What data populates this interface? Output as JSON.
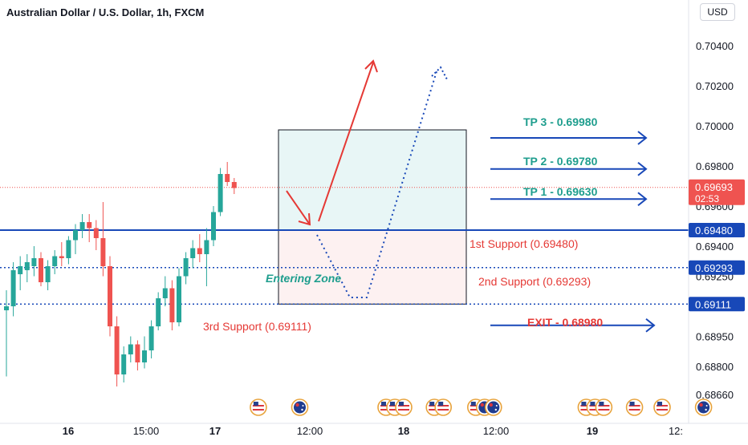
{
  "header": {
    "title": "Australian Dollar / U.S. Dollar, 1h, FXCM",
    "currency": "USD"
  },
  "colors": {
    "up": "#26a69a",
    "down": "#ef5350",
    "blue": "#1848b8",
    "red_text": "#e53935",
    "teal_text": "#1f9e8e",
    "price_line": "#ef5350"
  },
  "chart_data": {
    "type": "candlestick",
    "title": "Australian Dollar / U.S. Dollar, 1h, FXCM",
    "ylim": [
      0.6858,
      0.7058
    ],
    "y_ticks": [
      "0.70400",
      "0.70200",
      "0.70000",
      "0.69800",
      "0.69600",
      "0.69400",
      "0.69250",
      "0.68950",
      "0.68800",
      "0.68660"
    ],
    "x_ticks": [
      "16",
      "15:00",
      "17",
      "12:00",
      "18",
      "12:00",
      "19",
      "12:"
    ],
    "candles": [
      {
        "o": 0.6908,
        "h": 0.6918,
        "l": 0.6875,
        "c": 0.691
      },
      {
        "o": 0.691,
        "h": 0.6932,
        "l": 0.6905,
        "c": 0.6928
      },
      {
        "o": 0.6926,
        "h": 0.6935,
        "l": 0.6918,
        "c": 0.693
      },
      {
        "o": 0.6928,
        "h": 0.6936,
        "l": 0.6922,
        "c": 0.6932
      },
      {
        "o": 0.693,
        "h": 0.694,
        "l": 0.6925,
        "c": 0.6934
      },
      {
        "o": 0.6934,
        "h": 0.6937,
        "l": 0.692,
        "c": 0.6922
      },
      {
        "o": 0.6922,
        "h": 0.6933,
        "l": 0.6918,
        "c": 0.693
      },
      {
        "o": 0.693,
        "h": 0.6938,
        "l": 0.6926,
        "c": 0.6935
      },
      {
        "o": 0.6935,
        "h": 0.6942,
        "l": 0.693,
        "c": 0.6934
      },
      {
        "o": 0.6934,
        "h": 0.6945,
        "l": 0.6931,
        "c": 0.6943
      },
      {
        "o": 0.6943,
        "h": 0.6951,
        "l": 0.6936,
        "c": 0.6948
      },
      {
        "o": 0.6948,
        "h": 0.6956,
        "l": 0.6944,
        "c": 0.6952
      },
      {
        "o": 0.6952,
        "h": 0.6956,
        "l": 0.6942,
        "c": 0.6949
      },
      {
        "o": 0.6949,
        "h": 0.6953,
        "l": 0.6938,
        "c": 0.6944
      },
      {
        "o": 0.6944,
        "h": 0.6962,
        "l": 0.6925,
        "c": 0.693
      },
      {
        "o": 0.693,
        "h": 0.6935,
        "l": 0.6895,
        "c": 0.69
      },
      {
        "o": 0.69,
        "h": 0.6905,
        "l": 0.687,
        "c": 0.6876
      },
      {
        "o": 0.6876,
        "h": 0.689,
        "l": 0.6872,
        "c": 0.6886
      },
      {
        "o": 0.6886,
        "h": 0.6895,
        "l": 0.6882,
        "c": 0.6891
      },
      {
        "o": 0.6891,
        "h": 0.6893,
        "l": 0.6878,
        "c": 0.6882
      },
      {
        "o": 0.6882,
        "h": 0.6895,
        "l": 0.6879,
        "c": 0.6888
      },
      {
        "o": 0.6888,
        "h": 0.6903,
        "l": 0.6884,
        "c": 0.69
      },
      {
        "o": 0.69,
        "h": 0.6917,
        "l": 0.6898,
        "c": 0.6914
      },
      {
        "o": 0.6914,
        "h": 0.6925,
        "l": 0.691,
        "c": 0.6919
      },
      {
        "o": 0.6919,
        "h": 0.6923,
        "l": 0.6898,
        "c": 0.6902
      },
      {
        "o": 0.6902,
        "h": 0.6929,
        "l": 0.69,
        "c": 0.6925
      },
      {
        "o": 0.6925,
        "h": 0.6937,
        "l": 0.6921,
        "c": 0.6934
      },
      {
        "o": 0.6934,
        "h": 0.6943,
        "l": 0.6929,
        "c": 0.6939
      },
      {
        "o": 0.6939,
        "h": 0.6946,
        "l": 0.6932,
        "c": 0.6936
      },
      {
        "o": 0.6936,
        "h": 0.6949,
        "l": 0.692,
        "c": 0.6943
      },
      {
        "o": 0.6943,
        "h": 0.696,
        "l": 0.694,
        "c": 0.6957
      },
      {
        "o": 0.6957,
        "h": 0.6979,
        "l": 0.6955,
        "c": 0.6976
      },
      {
        "o": 0.6976,
        "h": 0.6982,
        "l": 0.697,
        "c": 0.6972
      },
      {
        "o": 0.6972,
        "h": 0.6974,
        "l": 0.6966,
        "c": 0.6969
      }
    ],
    "current_price": {
      "value": 0.69693,
      "label": "0.69693",
      "countdown": "02:53"
    },
    "levels": [
      {
        "value": 0.6948,
        "label": "0.69480",
        "style": "solid"
      },
      {
        "value": 0.69293,
        "label": "0.69293",
        "style": "dotted"
      },
      {
        "value": 0.69111,
        "label": "0.69111",
        "style": "dotted"
      }
    ],
    "annotations": {
      "tp3": "TP 3 - 0.69980",
      "tp2": "TP 2 - 0.69780",
      "tp1": "TP 1 - 0.69630",
      "exit": "EXIT - 0.68980",
      "support1": "1st Support (0.69480)",
      "support2": "2nd Support (0.69293)",
      "support3": "3rd Support (0.69111)",
      "entering_zone": "Entering Zone"
    },
    "zones": {
      "target": {
        "top": 0.6998,
        "bottom": 0.6948
      },
      "stop": {
        "top": 0.6948,
        "bottom": 0.69111
      }
    },
    "events": [
      {
        "candle": 36.5,
        "flags": [
          "us"
        ]
      },
      {
        "candle": 42.5,
        "flags": [
          "au"
        ]
      },
      {
        "candle": 55.0,
        "flags": [
          "us",
          "us",
          "us"
        ]
      },
      {
        "candle": 62.0,
        "flags": [
          "us",
          "us"
        ]
      },
      {
        "candle": 68.0,
        "flags": [
          "us",
          "au",
          "au"
        ]
      },
      {
        "candle": 84.0,
        "flags": [
          "us",
          "us",
          "us"
        ]
      },
      {
        "candle": 91.0,
        "flags": [
          "us"
        ]
      },
      {
        "candle": 95.0,
        "flags": [
          "us"
        ]
      },
      {
        "candle": 101.0,
        "flags": [
          "au"
        ]
      }
    ]
  }
}
